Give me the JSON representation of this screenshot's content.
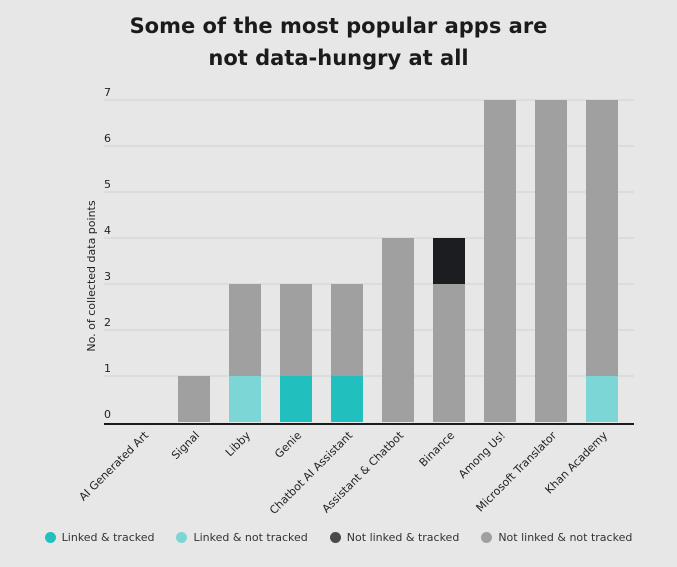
{
  "chart_data": {
    "type": "bar",
    "stacked": true,
    "title_lines": [
      "Some of the most popular apps are",
      "not data-hungry at all"
    ],
    "xlabel": "",
    "ylabel": "No. of collected data points",
    "ylim": [
      0,
      7
    ],
    "yticks": [
      "0",
      "1",
      "2",
      "3",
      "4",
      "5",
      "6",
      "7"
    ],
    "categories": [
      "AI Generated Art",
      "Signal",
      "Libby",
      "Genie",
      "Chatbot AI Assistant",
      "Assistant & Chatbot",
      "Binance",
      "Among Us!",
      "Microsoft Translator",
      "Khan Academy"
    ],
    "series": [
      {
        "name": "Linked & tracked",
        "color": "#22bfbf",
        "values": [
          0,
          0,
          0,
          1,
          1,
          0,
          0,
          0,
          0,
          0
        ]
      },
      {
        "name": "Linked & not tracked",
        "color": "#7dd6d6",
        "values": [
          0,
          0,
          1,
          0,
          0,
          0,
          0,
          0,
          0,
          1
        ]
      },
      {
        "name": "Not linked & not tracked",
        "color": "#a0a0a0",
        "values": [
          0,
          1,
          2,
          2,
          2,
          4,
          3,
          7,
          7,
          6
        ]
      },
      {
        "name": "Not linked & tracked",
        "color": "#1b1d20",
        "values": [
          0,
          0,
          0,
          0,
          0,
          0,
          1,
          0,
          0,
          0
        ]
      }
    ],
    "legend": [
      {
        "name": "Linked & tracked",
        "color": "#22bfbf"
      },
      {
        "name": "Linked & not tracked",
        "color": "#7dd6d6"
      },
      {
        "name": "Not linked & tracked",
        "color": "#4a4a4a"
      },
      {
        "name": "Not linked & not tracked",
        "color": "#a0a0a0"
      }
    ],
    "legend_position": "bottom"
  }
}
